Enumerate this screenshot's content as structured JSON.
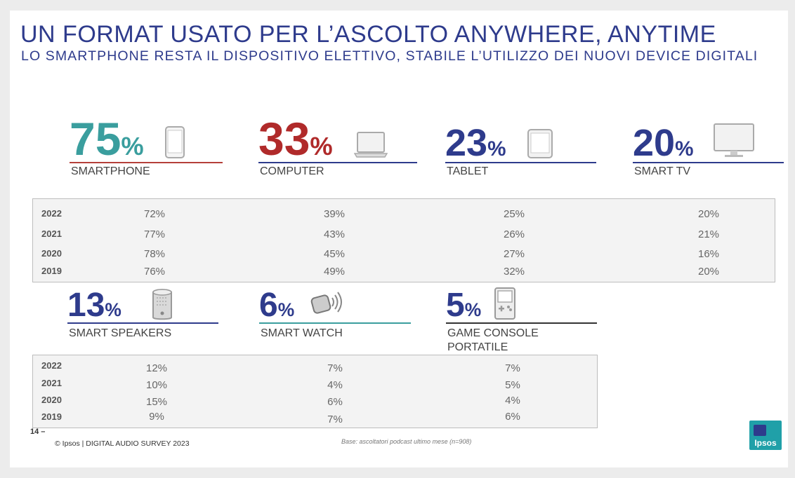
{
  "header": {
    "title": "UN FORMAT USATO PER L’ASCOLTO ANYWHERE, ANYTIME",
    "subtitle": "LO SMARTPHONE RESTA IL DISPOSITIVO ELETTIVO, STABILE L’UTILIZZO DEI NUOVI DEVICE DIGITALI"
  },
  "devices_top": [
    {
      "value": "75",
      "unit": "%",
      "label": "SMARTPHONE",
      "color": "#3a9e9e",
      "underline": "#b5403a",
      "icon": "smartphone-icon"
    },
    {
      "value": "33",
      "unit": "%",
      "label": "COMPUTER",
      "color": "#b02a2a",
      "underline": "#2e3b8c",
      "icon": "laptop-icon"
    },
    {
      "value": "23",
      "unit": "%",
      "label": "TABLET",
      "color": "#2e3b8c",
      "underline": "#2e3b8c",
      "icon": "tablet-icon"
    },
    {
      "value": "20",
      "unit": "%",
      "label": "SMART TV",
      "color": "#2e3b8c",
      "underline": "#2e3b8c",
      "icon": "monitor-icon"
    }
  ],
  "table_top": {
    "years": [
      "2022",
      "2021",
      "2020",
      "2019"
    ],
    "rows": [
      [
        "72%",
        "39%",
        "25%",
        "20%"
      ],
      [
        "77%",
        "43%",
        "26%",
        "21%"
      ],
      [
        "78%",
        "45%",
        "27%",
        "16%"
      ],
      [
        "76%",
        "49%",
        "32%",
        "20%"
      ]
    ]
  },
  "devices_bottom": [
    {
      "value": "13",
      "unit": "%",
      "label": "SMART SPEAKERS",
      "color": "#2e3b8c",
      "underline": "#2e3b8c",
      "icon": "smart-speaker-icon"
    },
    {
      "value": "6",
      "unit": "%",
      "label": "SMART WATCH",
      "color": "#2e3b8c",
      "underline": "#3a9e9e",
      "icon": "smartwatch-icon"
    },
    {
      "value": "5",
      "unit": "%",
      "label": "GAME CONSOLE",
      "label2": "PORTATILE",
      "color": "#2e3b8c",
      "underline": "#333333",
      "icon": "handheld-console-icon"
    }
  ],
  "table_bottom": {
    "years": [
      "2022",
      "2021",
      "2020",
      "2019"
    ],
    "rows": [
      [
        "12%",
        "7%",
        "7%"
      ],
      [
        "10%",
        "4%",
        "5%"
      ],
      [
        "15%",
        "6%",
        "4%"
      ],
      [
        "9%",
        "7%",
        "6%"
      ]
    ]
  },
  "footer": {
    "page": "14 –",
    "copyright": "© Ipsos | DIGITAL AUDIO SURVEY 2023",
    "base": "Base: ascoltatori podcast ultimo mese (n=908)",
    "logo": "Ipsos"
  }
}
